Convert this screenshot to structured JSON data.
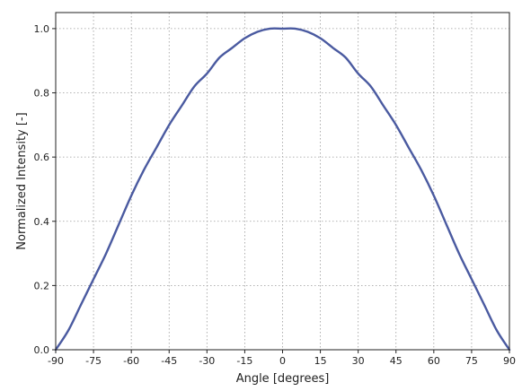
{
  "chart_data": {
    "type": "line",
    "title": "",
    "xlabel": "Angle [degrees]",
    "ylabel": "Normalized Intensity [-]",
    "xlim": [
      -90,
      90
    ],
    "ylim": [
      0.0,
      1.05
    ],
    "x_ticks": [
      -90,
      -75,
      -60,
      -45,
      -30,
      -15,
      0,
      15,
      30,
      45,
      60,
      75,
      90
    ],
    "x_tick_labels": [
      "-90",
      "-75",
      "-60",
      "-45",
      "-30",
      "-15",
      "0",
      "15",
      "30",
      "45",
      "60",
      "75",
      "90"
    ],
    "y_ticks": [
      0.0,
      0.2,
      0.4,
      0.6,
      0.8,
      1.0
    ],
    "y_tick_labels": [
      "0.0",
      "0.2",
      "0.4",
      "0.6",
      "0.8",
      "1.0"
    ],
    "grid": true,
    "series": [
      {
        "color": "#4a5aa0",
        "x": [
          -90,
          -85,
          -80,
          -75,
          -70,
          -65,
          -60,
          -55,
          -50,
          -45,
          -40,
          -35,
          -30,
          -25,
          -20,
          -15,
          -10,
          -5,
          0,
          5,
          10,
          15,
          20,
          25,
          30,
          35,
          40,
          45,
          50,
          55,
          60,
          65,
          70,
          75,
          80,
          85,
          90
        ],
        "y": [
          0.0,
          0.06,
          0.14,
          0.22,
          0.3,
          0.39,
          0.48,
          0.56,
          0.63,
          0.7,
          0.76,
          0.82,
          0.86,
          0.91,
          0.94,
          0.97,
          0.99,
          1.0,
          1.0,
          1.0,
          0.99,
          0.97,
          0.94,
          0.91,
          0.86,
          0.82,
          0.76,
          0.7,
          0.63,
          0.56,
          0.48,
          0.39,
          0.3,
          0.22,
          0.14,
          0.06,
          0.0
        ]
      }
    ]
  }
}
